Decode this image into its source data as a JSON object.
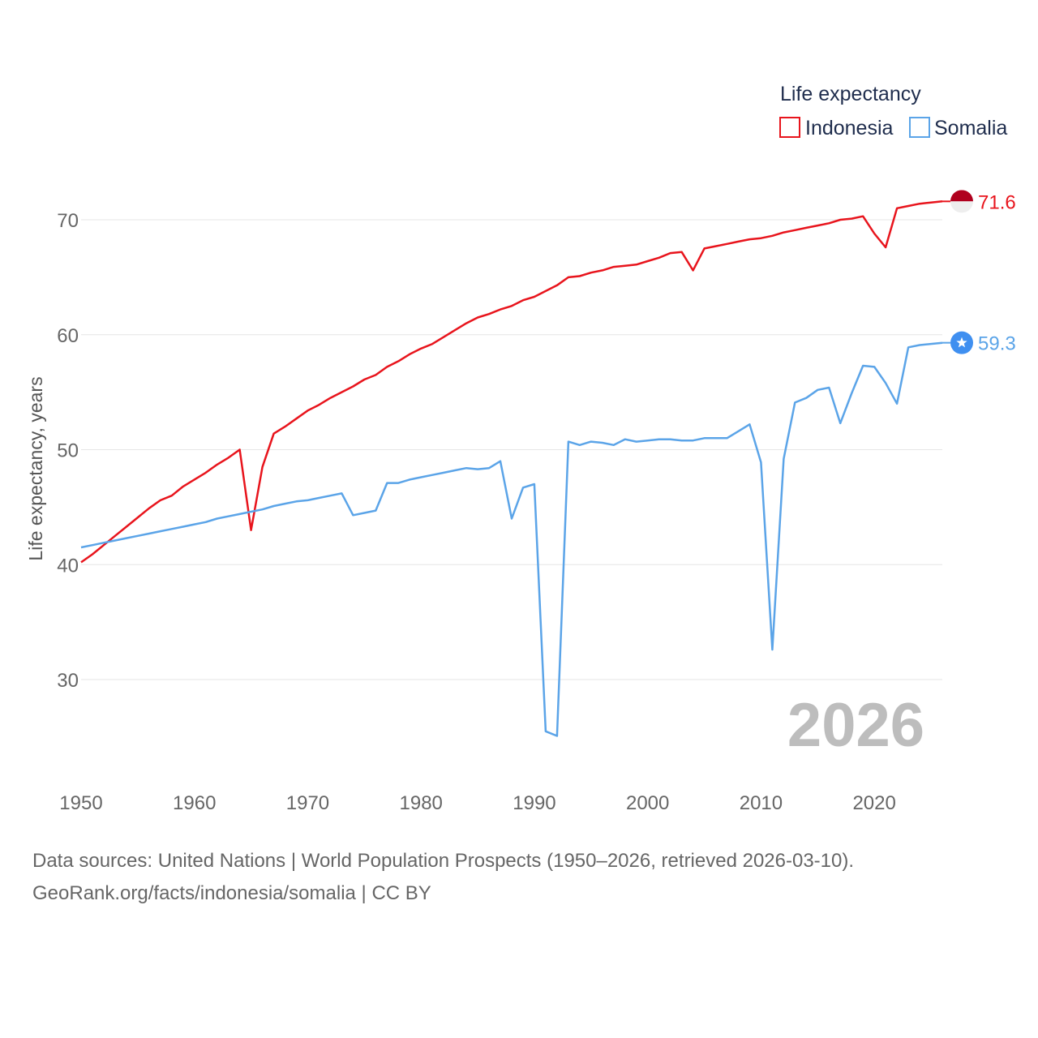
{
  "chart_data": {
    "type": "line",
    "ylabel": "Life expectancy, years",
    "xlabel": "",
    "xlim": [
      1950,
      2026
    ],
    "ylim": [
      23,
      75
    ],
    "yticks": [
      30,
      40,
      50,
      60,
      70
    ],
    "xticks": [
      1950,
      1960,
      1970,
      1980,
      1990,
      2000,
      2010,
      2020
    ],
    "legend": {
      "title": "Life expectancy",
      "position": "top-right"
    },
    "current_year_label": "2026",
    "series": [
      {
        "name": "Indonesia",
        "color": "#e8141c",
        "flag_icon": "indonesia-flag-icon",
        "end_label": "71.6",
        "x": [
          1950,
          1951,
          1952,
          1953,
          1954,
          1955,
          1956,
          1957,
          1958,
          1959,
          1960,
          1961,
          1962,
          1963,
          1964,
          1965,
          1966,
          1967,
          1968,
          1969,
          1970,
          1971,
          1972,
          1973,
          1974,
          1975,
          1976,
          1977,
          1978,
          1979,
          1980,
          1981,
          1982,
          1983,
          1984,
          1985,
          1986,
          1987,
          1988,
          1989,
          1990,
          1991,
          1992,
          1993,
          1994,
          1995,
          1996,
          1997,
          1998,
          1999,
          2000,
          2001,
          2002,
          2003,
          2004,
          2005,
          2006,
          2007,
          2008,
          2009,
          2010,
          2011,
          2012,
          2013,
          2014,
          2015,
          2016,
          2017,
          2018,
          2019,
          2020,
          2021,
          2022,
          2023,
          2024,
          2025,
          2026
        ],
        "values": [
          40.2,
          40.9,
          41.7,
          42.5,
          43.3,
          44.1,
          44.9,
          45.6,
          46.0,
          46.8,
          47.4,
          48.0,
          48.7,
          49.3,
          50.0,
          43.0,
          48.5,
          51.4,
          52.0,
          52.7,
          53.4,
          53.9,
          54.5,
          55.0,
          55.5,
          56.1,
          56.5,
          57.2,
          57.7,
          58.3,
          58.8,
          59.2,
          59.8,
          60.4,
          61.0,
          61.5,
          61.8,
          62.2,
          62.5,
          63.0,
          63.3,
          63.8,
          64.3,
          65.0,
          65.1,
          65.4,
          65.6,
          65.9,
          66.0,
          66.1,
          66.4,
          66.7,
          67.1,
          67.2,
          65.6,
          67.5,
          67.7,
          67.9,
          68.1,
          68.3,
          68.4,
          68.6,
          68.9,
          69.1,
          69.3,
          69.5,
          69.7,
          70.0,
          70.1,
          70.3,
          68.8,
          67.6,
          71.0,
          71.2,
          71.4,
          71.5,
          71.6
        ]
      },
      {
        "name": "Somalia",
        "color": "#5ba4e8",
        "flag_icon": "somalia-flag-icon",
        "end_label": "59.3",
        "x": [
          1950,
          1951,
          1952,
          1953,
          1954,
          1955,
          1956,
          1957,
          1958,
          1959,
          1960,
          1961,
          1962,
          1963,
          1964,
          1965,
          1966,
          1967,
          1968,
          1969,
          1970,
          1971,
          1972,
          1973,
          1974,
          1975,
          1976,
          1977,
          1978,
          1979,
          1980,
          1981,
          1982,
          1983,
          1984,
          1985,
          1986,
          1987,
          1988,
          1989,
          1990,
          1991,
          1992,
          1993,
          1994,
          1995,
          1996,
          1997,
          1998,
          1999,
          2000,
          2001,
          2002,
          2003,
          2004,
          2005,
          2006,
          2007,
          2008,
          2009,
          2010,
          2011,
          2012,
          2013,
          2014,
          2015,
          2016,
          2017,
          2018,
          2019,
          2020,
          2021,
          2022,
          2023,
          2024,
          2025,
          2026
        ],
        "values": [
          41.5,
          41.7,
          41.9,
          42.1,
          42.3,
          42.5,
          42.7,
          42.9,
          43.1,
          43.3,
          43.5,
          43.7,
          44.0,
          44.2,
          44.4,
          44.6,
          44.8,
          45.1,
          45.3,
          45.5,
          45.6,
          45.8,
          46.0,
          46.2,
          44.3,
          44.5,
          44.7,
          47.1,
          47.1,
          47.4,
          47.6,
          47.8,
          48.0,
          48.2,
          48.4,
          48.3,
          48.4,
          49.0,
          44.0,
          46.7,
          47.0,
          25.5,
          25.1,
          50.7,
          50.4,
          50.7,
          50.6,
          50.4,
          50.9,
          50.7,
          50.8,
          50.9,
          50.9,
          50.8,
          50.8,
          51.0,
          51.0,
          51.0,
          51.6,
          52.2,
          48.9,
          32.6,
          49.2,
          54.1,
          54.5,
          55.2,
          55.4,
          52.3,
          54.9,
          57.3,
          57.2,
          55.8,
          54.0,
          58.9,
          59.1,
          59.2,
          59.3
        ]
      }
    ]
  },
  "footer": {
    "source_line": "Data sources: United Nations | World Population Prospects (1950–2026, retrieved 2026-03-10).",
    "link_line": "GeoRank.org/facts/indonesia/somalia | CC BY"
  }
}
